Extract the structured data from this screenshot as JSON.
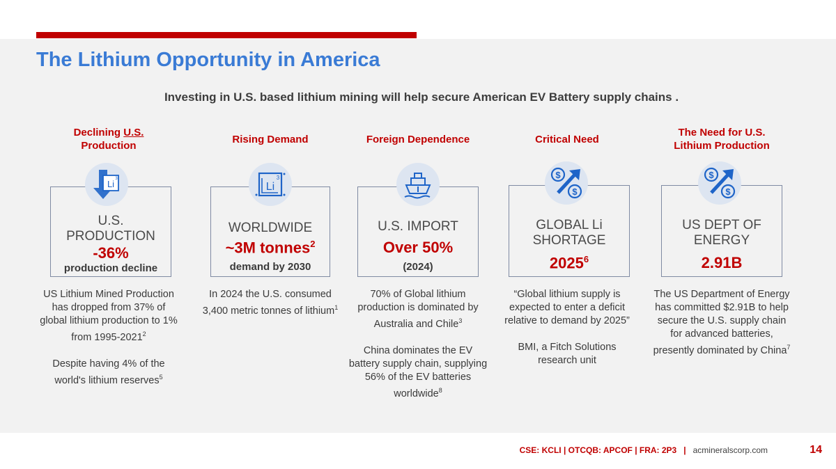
{
  "title": "The Lithium Opportunity in America",
  "subtitle": "Investing in U.S. based lithium mining will help secure American EV Battery supply chains .",
  "colors": {
    "accent_red": "#c00000",
    "title_blue": "#3a7bd5",
    "icon_circle": "#dde5f1",
    "icon_blue": "#1e64c8"
  },
  "columns": [
    {
      "heading_pre": "Declining ",
      "heading_underline": "U.S.",
      "heading_post": "Production",
      "icon": "lithium-down-arrow-icon",
      "main1": "U.S.",
      "main2": "PRODUCTION",
      "big": "-36%",
      "small": "production decline",
      "desc1": "US Lithium Mined Production has dropped from 37% of global lithium production to 1% from 1995-2021",
      "desc1_sup": "2",
      "desc2": "Despite having 4% of the world's lithium reserves",
      "desc2_sup": "5"
    },
    {
      "heading": "Rising Demand",
      "icon": "lithium-element-icon",
      "icon_sup": "3",
      "main1": "WORLDWIDE",
      "big": "~3M tonnes",
      "big_sup": "2",
      "small": "demand by 2030",
      "desc1": "In 2024 the U.S. consumed 3,400 metric tonnes of lithium",
      "desc1_sup": "1"
    },
    {
      "heading": "Foreign Dependence",
      "icon": "cargo-ship-icon",
      "main1": "U.S. IMPORT",
      "big": "Over 50%",
      "small": "(2024)",
      "desc1": "70% of Global lithium production is dominated by Australia and Chile",
      "desc1_sup": "3",
      "desc2": "China dominates the EV battery supply chain, supplying 56% of the EV batteries worldwide",
      "desc2_sup": "8"
    },
    {
      "heading": "Critical Need",
      "icon": "dollar-growth-arrow-icon",
      "main1": "GLOBAL Li",
      "main2": "SHORTAGE",
      "big": "2025",
      "big_sup": "6",
      "desc1": "“Global lithium supply is expected to enter a deficit relative to demand by 2025”",
      "desc2": "BMI, a Fitch Solutions research unit"
    },
    {
      "heading_line1": "The Need for U.S.",
      "heading_line2": "Lithium Production",
      "icon": "dollar-growth-arrow-icon",
      "main1": "US DEPT OF",
      "main2": "ENERGY",
      "big": "2.91B",
      "desc1": "The US Department of Energy has committed $2.91B to help secure the U.S. supply chain for advanced batteries, presently dominated by China",
      "desc1_sup": "7"
    }
  ],
  "footer": {
    "tickers": "CSE: KCLI | OTCQB: APCOF | FRA: 2P3",
    "separator": "|",
    "website": "acmineralscorp.com",
    "page_number": "14"
  }
}
